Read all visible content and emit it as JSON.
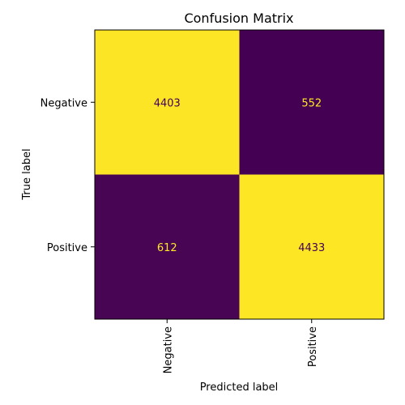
{
  "chart_data": {
    "type": "heatmap",
    "title": "Confusion Matrix",
    "xlabel": "Predicted label",
    "ylabel": "True label",
    "x_categories": [
      "Negative",
      "Positive"
    ],
    "y_categories": [
      "Negative",
      "Positive"
    ],
    "values": [
      [
        4403,
        552
      ],
      [
        612,
        4433
      ]
    ],
    "colormap": "viridis",
    "colors": {
      "high": "#fde725",
      "low": "#440154"
    },
    "grid": false,
    "legend": "none"
  }
}
